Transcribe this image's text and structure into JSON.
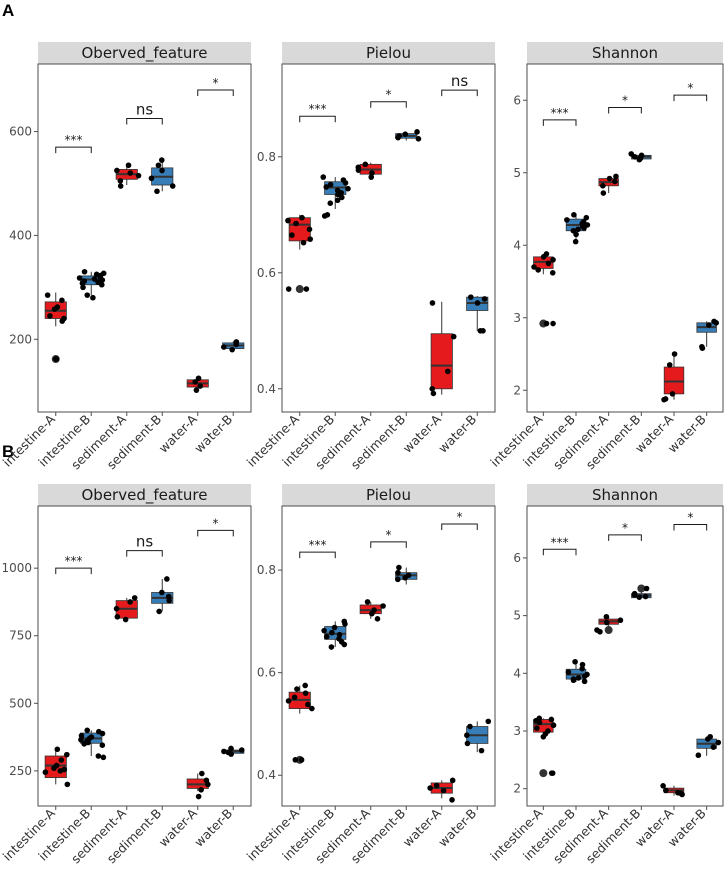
{
  "figure": {
    "panel_labels": [
      "A",
      "B"
    ]
  },
  "colors": {
    "A": "#e41a1c",
    "B": "#377eb8",
    "strip": "#d9d9d9",
    "frame": "#4d4d4d",
    "point": "#000000"
  },
  "chart_data": [
    {
      "type": "boxplot",
      "panel": "A",
      "title": "Oberved_feature",
      "categories": [
        "intestine-A",
        "intestine-B",
        "sediment-A",
        "sediment-B",
        "water-A",
        "water-B"
      ],
      "group_of": [
        "A",
        "B",
        "A",
        "B",
        "A",
        "B"
      ],
      "ylim": [
        60,
        730
      ],
      "yticks": [
        200,
        400,
        600
      ],
      "boxes": [
        {
          "q1": 240,
          "median": 255,
          "q3": 272,
          "lo": 225,
          "hi": 290
        },
        {
          "q1": 305,
          "median": 315,
          "q3": 322,
          "lo": 285,
          "hi": 330
        },
        {
          "q1": 508,
          "median": 518,
          "q3": 527,
          "lo": 497,
          "hi": 535
        },
        {
          "q1": 497,
          "median": 513,
          "q3": 530,
          "lo": 485,
          "hi": 545
        },
        {
          "q1": 108,
          "median": 115,
          "q3": 122,
          "lo": 102,
          "hi": 128
        },
        {
          "q1": 182,
          "median": 188,
          "q3": 193,
          "lo": 177,
          "hi": 196
        }
      ],
      "points": [
        [
          285,
          275,
          262,
          258,
          245,
          240,
          235,
          162,
          162
        ],
        [
          330,
          327,
          325,
          323,
          320,
          318,
          316,
          314,
          312,
          310,
          308,
          305,
          300,
          285,
          280
        ],
        [
          535,
          525,
          520,
          515,
          505,
          495
        ],
        [
          545,
          535,
          525,
          510,
          495,
          485
        ],
        [
          125,
          118,
          110,
          102
        ],
        [
          195,
          190,
          185,
          180
        ]
      ],
      "outliers": [
        [
          162
        ],
        [],
        [],
        [],
        [],
        []
      ],
      "comparisons": [
        {
          "pair": [
            0,
            1
          ],
          "label": "***",
          "y": 570
        },
        {
          "pair": [
            2,
            3
          ],
          "label": "ns",
          "y": 625
        },
        {
          "pair": [
            4,
            5
          ],
          "label": "*",
          "y": 680
        }
      ]
    },
    {
      "type": "boxplot",
      "panel": "A",
      "title": "Pielou",
      "categories": [
        "intestine-A",
        "intestine-B",
        "sediment-A",
        "sediment-B",
        "water-A",
        "water-B"
      ],
      "group_of": [
        "A",
        "B",
        "A",
        "B",
        "A",
        "B"
      ],
      "ylim": [
        0.36,
        0.96
      ],
      "yticks": [
        0.4,
        0.6,
        0.8
      ],
      "boxes": [
        {
          "q1": 0.655,
          "median": 0.683,
          "q3": 0.695,
          "lo": 0.64,
          "hi": 0.7
        },
        {
          "q1": 0.735,
          "median": 0.747,
          "q3": 0.757,
          "lo": 0.71,
          "hi": 0.765
        },
        {
          "q1": 0.77,
          "median": 0.778,
          "q3": 0.787,
          "lo": 0.76,
          "hi": 0.79
        },
        {
          "q1": 0.832,
          "median": 0.836,
          "q3": 0.84,
          "lo": 0.828,
          "hi": 0.843
        },
        {
          "q1": 0.4,
          "median": 0.44,
          "q3": 0.495,
          "lo": 0.39,
          "hi": 0.55
        },
        {
          "q1": 0.535,
          "median": 0.548,
          "q3": 0.558,
          "lo": 0.5,
          "hi": 0.56
        }
      ],
      "points": [
        [
          0.695,
          0.69,
          0.685,
          0.675,
          0.665,
          0.658,
          0.652,
          0.572,
          0.572
        ],
        [
          0.765,
          0.76,
          0.755,
          0.752,
          0.748,
          0.745,
          0.742,
          0.738,
          0.735,
          0.73,
          0.725,
          0.72,
          0.7,
          0.698
        ],
        [
          0.787,
          0.782,
          0.777,
          0.772,
          0.765
        ],
        [
          0.843,
          0.839,
          0.836,
          0.833,
          0.831
        ],
        [
          0.548,
          0.49,
          0.43,
          0.4,
          0.392
        ],
        [
          0.558,
          0.555,
          0.548,
          0.5,
          0.5
        ]
      ],
      "outliers": [
        [
          0.572
        ],
        [],
        [],
        [],
        [],
        []
      ],
      "comparisons": [
        {
          "pair": [
            0,
            1
          ],
          "label": "***",
          "y": 0.87
        },
        {
          "pair": [
            2,
            3
          ],
          "label": "*",
          "y": 0.895
        },
        {
          "pair": [
            4,
            5
          ],
          "label": "ns",
          "y": 0.915
        }
      ]
    },
    {
      "type": "boxplot",
      "panel": "A",
      "title": "Shannon",
      "categories": [
        "intestine-A",
        "intestine-B",
        "sediment-A",
        "sediment-B",
        "water-A",
        "water-B"
      ],
      "group_of": [
        "A",
        "B",
        "A",
        "B",
        "A",
        "B"
      ],
      "ylim": [
        1.7,
        6.5
      ],
      "yticks": [
        2,
        3,
        4,
        5,
        6
      ],
      "boxes": [
        {
          "q1": 3.68,
          "median": 3.77,
          "q3": 3.84,
          "lo": 3.6,
          "hi": 3.88
        },
        {
          "q1": 4.2,
          "median": 4.28,
          "q3": 4.36,
          "lo": 4.05,
          "hi": 4.42
        },
        {
          "q1": 4.82,
          "median": 4.87,
          "q3": 4.92,
          "lo": 4.72,
          "hi": 4.95
        },
        {
          "q1": 5.19,
          "median": 5.22,
          "q3": 5.24,
          "lo": 5.18,
          "hi": 5.26
        },
        {
          "q1": 1.95,
          "median": 2.12,
          "q3": 2.32,
          "lo": 1.87,
          "hi": 2.5
        },
        {
          "q1": 2.8,
          "median": 2.87,
          "q3": 2.93,
          "lo": 2.6,
          "hi": 2.95
        }
      ],
      "points": [
        [
          3.88,
          3.84,
          3.8,
          3.75,
          3.7,
          3.66,
          3.62,
          2.92,
          2.92
        ],
        [
          4.42,
          4.38,
          4.35,
          4.32,
          4.3,
          4.28,
          4.26,
          4.24,
          4.22,
          4.2,
          4.15,
          4.05
        ],
        [
          4.95,
          4.92,
          4.88,
          4.82,
          4.72
        ],
        [
          5.26,
          5.24,
          5.22,
          5.2,
          5.18
        ],
        [
          2.5,
          2.35,
          1.95,
          1.88,
          1.87
        ],
        [
          2.95,
          2.93,
          2.9,
          2.6,
          2.58
        ]
      ],
      "outliers": [
        [
          2.92
        ],
        [],
        [],
        [],
        [],
        []
      ],
      "comparisons": [
        {
          "pair": [
            0,
            1
          ],
          "label": "***",
          "y": 5.73
        },
        {
          "pair": [
            2,
            3
          ],
          "label": "*",
          "y": 5.9
        },
        {
          "pair": [
            4,
            5
          ],
          "label": "*",
          "y": 6.07
        }
      ]
    },
    {
      "type": "boxplot",
      "panel": "B",
      "title": "Oberved_feature",
      "categories": [
        "intestine-A",
        "intestine-B",
        "sediment-A",
        "sediment-B",
        "water-A",
        "water-B"
      ],
      "group_of": [
        "A",
        "B",
        "A",
        "B",
        "A",
        "B"
      ],
      "ylim": [
        120,
        1230
      ],
      "yticks": [
        250,
        500,
        750,
        1000
      ],
      "boxes": [
        {
          "q1": 225,
          "median": 270,
          "q3": 305,
          "lo": 200,
          "hi": 330
        },
        {
          "q1": 352,
          "median": 370,
          "q3": 390,
          "lo": 305,
          "hi": 400
        },
        {
          "q1": 815,
          "median": 850,
          "q3": 880,
          "lo": 805,
          "hi": 890
        },
        {
          "q1": 870,
          "median": 890,
          "q3": 910,
          "lo": 840,
          "hi": 960
        },
        {
          "q1": 185,
          "median": 200,
          "q3": 220,
          "lo": 175,
          "hi": 240
        },
        {
          "q1": 315,
          "median": 322,
          "q3": 327,
          "lo": 310,
          "hi": 333
        }
      ],
      "points": [
        [
          330,
          310,
          290,
          270,
          260,
          255,
          250,
          245,
          200
        ],
        [
          400,
          395,
          388,
          380,
          375,
          370,
          365,
          360,
          355,
          350,
          345,
          305,
          300
        ],
        [
          890,
          875,
          850,
          820,
          810
        ],
        [
          960,
          910,
          895,
          880,
          840
        ],
        [
          240,
          215,
          200,
          180,
          155
        ],
        [
          333,
          327,
          322,
          318,
          312
        ]
      ],
      "outliers": [
        [],
        [],
        [],
        [],
        [],
        []
      ],
      "comparisons": [
        {
          "pair": [
            0,
            1
          ],
          "label": "***",
          "y": 1000
        },
        {
          "pair": [
            2,
            3
          ],
          "label": "ns",
          "y": 1065
        },
        {
          "pair": [
            4,
            5
          ],
          "label": "*",
          "y": 1140
        }
      ]
    },
    {
      "type": "boxplot",
      "panel": "B",
      "title": "Pielou",
      "categories": [
        "intestine-A",
        "intestine-B",
        "sediment-A",
        "sediment-B",
        "water-A",
        "water-B"
      ],
      "group_of": [
        "A",
        "B",
        "A",
        "B",
        "A",
        "B"
      ],
      "ylim": [
        0.34,
        0.925
      ],
      "yticks": [
        0.4,
        0.6,
        0.8
      ],
      "boxes": [
        {
          "q1": 0.53,
          "median": 0.547,
          "q3": 0.562,
          "lo": 0.52,
          "hi": 0.575
        },
        {
          "q1": 0.665,
          "median": 0.676,
          "q3": 0.69,
          "lo": 0.65,
          "hi": 0.7
        },
        {
          "q1": 0.715,
          "median": 0.722,
          "q3": 0.732,
          "lo": 0.705,
          "hi": 0.738
        },
        {
          "q1": 0.782,
          "median": 0.79,
          "q3": 0.795,
          "lo": 0.772,
          "hi": 0.805
        },
        {
          "q1": 0.365,
          "median": 0.375,
          "q3": 0.385,
          "lo": 0.355,
          "hi": 0.39
        },
        {
          "q1": 0.462,
          "median": 0.478,
          "q3": 0.495,
          "lo": 0.445,
          "hi": 0.505
        }
      ],
      "points": [
        [
          0.575,
          0.568,
          0.56,
          0.552,
          0.545,
          0.538,
          0.53,
          0.43,
          0.43
        ],
        [
          0.7,
          0.695,
          0.688,
          0.682,
          0.678,
          0.674,
          0.67,
          0.666,
          0.66,
          0.655,
          0.65
        ],
        [
          0.738,
          0.73,
          0.722,
          0.715,
          0.705
        ],
        [
          0.805,
          0.795,
          0.79,
          0.785,
          0.782
        ],
        [
          0.39,
          0.38,
          0.375,
          0.37,
          0.352
        ],
        [
          0.505,
          0.495,
          0.478,
          0.462,
          0.448
        ]
      ],
      "outliers": [
        [
          0.43
        ],
        [],
        [],
        [],
        [],
        []
      ],
      "comparisons": [
        {
          "pair": [
            0,
            1
          ],
          "label": "***",
          "y": 0.835
        },
        {
          "pair": [
            2,
            3
          ],
          "label": "*",
          "y": 0.855
        },
        {
          "pair": [
            4,
            5
          ],
          "label": "*",
          "y": 0.89
        }
      ]
    },
    {
      "type": "boxplot",
      "panel": "B",
      "title": "Shannon",
      "categories": [
        "intestine-A",
        "intestine-B",
        "sediment-A",
        "sediment-B",
        "water-A",
        "water-B"
      ],
      "group_of": [
        "A",
        "B",
        "A",
        "B",
        "A",
        "B"
      ],
      "ylim": [
        1.7,
        6.9
      ],
      "yticks": [
        2,
        3,
        4,
        5,
        6
      ],
      "boxes": [
        {
          "q1": 2.98,
          "median": 3.12,
          "q3": 3.2,
          "lo": 2.9,
          "hi": 3.22
        },
        {
          "q1": 3.9,
          "median": 3.98,
          "q3": 4.07,
          "lo": 3.85,
          "hi": 4.2
        },
        {
          "q1": 4.85,
          "median": 4.9,
          "q3": 4.94,
          "lo": 4.72,
          "hi": 4.98
        },
        {
          "q1": 5.31,
          "median": 5.35,
          "q3": 5.38,
          "lo": 5.3,
          "hi": 5.47
        },
        {
          "q1": 1.93,
          "median": 1.97,
          "q3": 2.01,
          "lo": 1.88,
          "hi": 2.05
        },
        {
          "q1": 2.7,
          "median": 2.78,
          "q3": 2.86,
          "lo": 2.57,
          "hi": 2.9
        }
      ],
      "points": [
        [
          3.22,
          3.2,
          3.18,
          3.15,
          3.1,
          3.05,
          3.0,
          2.95,
          2.9,
          2.27,
          2.27
        ],
        [
          4.2,
          4.15,
          4.08,
          4.02,
          3.98,
          3.95,
          3.92,
          3.9,
          3.88,
          3.86
        ],
        [
          4.98,
          4.92,
          4.88,
          4.75,
          4.72
        ],
        [
          5.47,
          5.38,
          5.36,
          5.33,
          5.32
        ],
        [
          2.05,
          1.97,
          1.93,
          1.92,
          1.9
        ],
        [
          2.9,
          2.86,
          2.8,
          2.72,
          2.58
        ]
      ],
      "outliers": [
        [
          2.27
        ],
        [],
        [
          4.75
        ],
        [
          5.47
        ],
        [],
        []
      ],
      "comparisons": [
        {
          "pair": [
            0,
            1
          ],
          "label": "***",
          "y": 6.15
        },
        {
          "pair": [
            2,
            3
          ],
          "label": "*",
          "y": 6.4
        },
        {
          "pair": [
            4,
            5
          ],
          "label": "*",
          "y": 6.58
        }
      ]
    }
  ]
}
